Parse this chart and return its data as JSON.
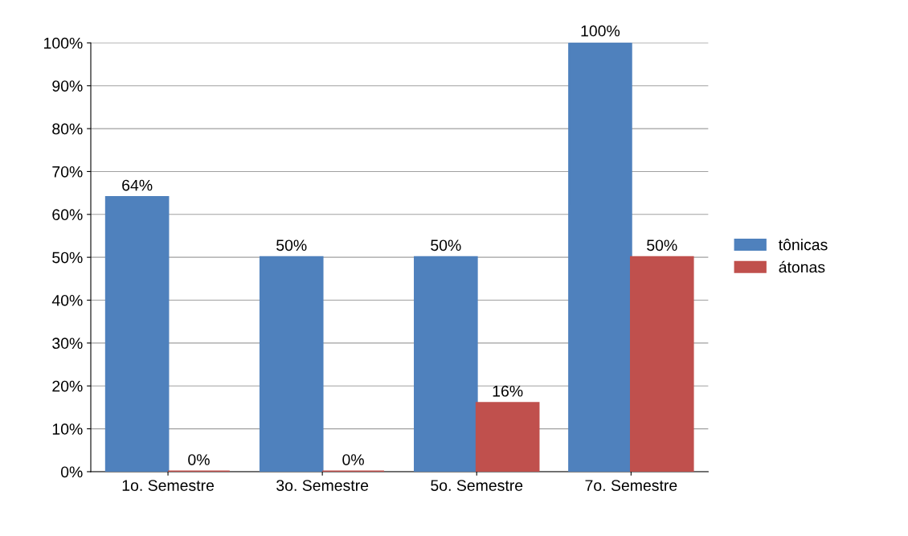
{
  "chart_data": {
    "type": "bar",
    "categories": [
      "1o. Semestre",
      "3o. Semestre",
      "5o. Semestre",
      "7o. Semestre"
    ],
    "series": [
      {
        "name": "tônicas",
        "color": "#4f81bd",
        "values": [
          64,
          50,
          50,
          100
        ],
        "value_labels": [
          "64%",
          "50%",
          "50%",
          "100%"
        ]
      },
      {
        "name": "átonas",
        "color": "#c0504d",
        "values": [
          0,
          0,
          16,
          50
        ],
        "value_labels": [
          "0%",
          "0%",
          "16%",
          "50%"
        ]
      }
    ],
    "ylim": [
      0,
      100
    ],
    "yticks": [
      {
        "value": 0,
        "label": "0%"
      },
      {
        "value": 10,
        "label": "10%"
      },
      {
        "value": 20,
        "label": "20%"
      },
      {
        "value": 30,
        "label": "30%"
      },
      {
        "value": 40,
        "label": "40%"
      },
      {
        "value": 50,
        "label": "50%"
      },
      {
        "value": 60,
        "label": "60%"
      },
      {
        "value": 70,
        "label": "70%"
      },
      {
        "value": 80,
        "label": "80%"
      },
      {
        "value": 90,
        "label": "90%"
      },
      {
        "value": 100,
        "label": "100%"
      }
    ],
    "grid": "y",
    "legend": "right"
  }
}
